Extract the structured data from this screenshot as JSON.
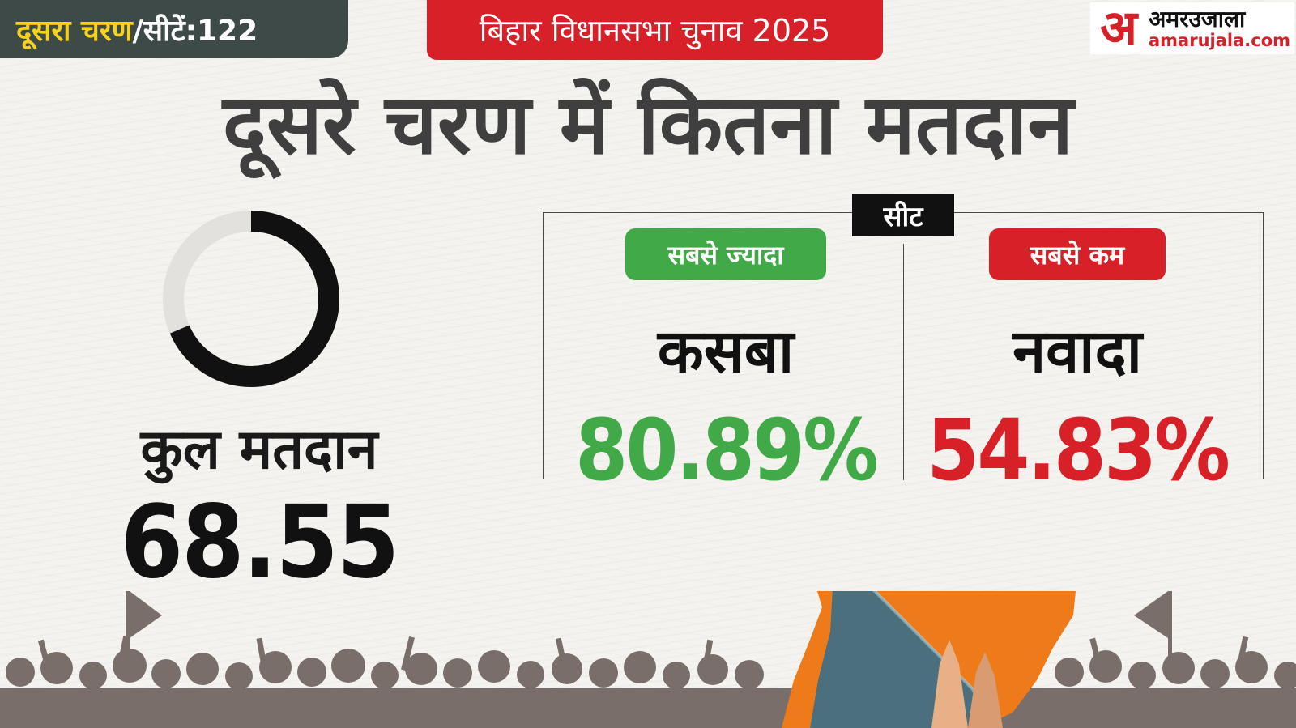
{
  "header": {
    "phase_label": "दूसरा चरण",
    "seats_label": "/सीटें:122",
    "election_title": "बिहार विधानसभा चुनाव 2025"
  },
  "logo": {
    "mark": "अ",
    "name": "अमरउजाला",
    "url": "amarujala.com"
  },
  "main_title": "दूसरे चरण में कितना मतदान",
  "turnout": {
    "label": "कुल मतदान",
    "value": "68.55",
    "fraction": 0.6855
  },
  "seats": {
    "label": "सीट",
    "highest": {
      "tag": "सबसे ज्यादा",
      "name": "कसबा",
      "percent": "80.89%"
    },
    "lowest": {
      "tag": "सबसे कम",
      "name": "नवादा",
      "percent": "54.83%"
    }
  },
  "colors": {
    "green": "#41a947",
    "red": "#d72028",
    "badge_dark": "#3d4a47",
    "badge_yellow": "#f6d21a",
    "map_orange": "#ef7a1a",
    "crowd_gray": "#7a6e6b"
  }
}
